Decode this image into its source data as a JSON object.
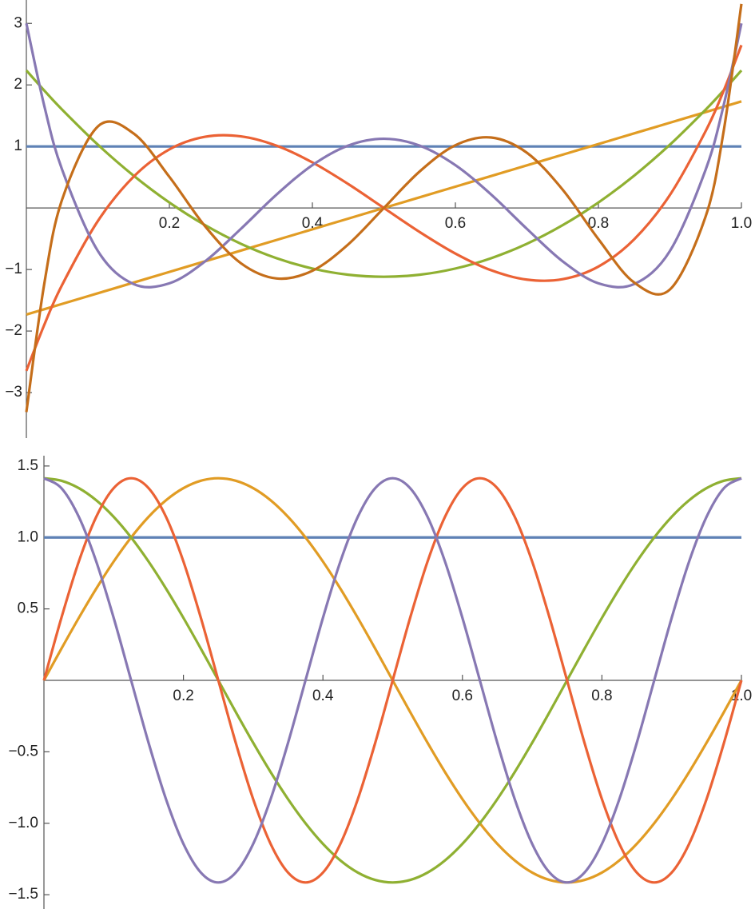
{
  "chart_data": [
    {
      "type": "line",
      "x": [
        0,
        0.025,
        0.05,
        0.1,
        0.15,
        0.2,
        0.25,
        0.3,
        0.35,
        0.4,
        0.45,
        0.5,
        0.55,
        0.6,
        0.65,
        0.7,
        0.75,
        0.8,
        0.85,
        0.9,
        0.95,
        0.975,
        1
      ],
      "xlim": [
        0,
        1
      ],
      "xticks": [
        0.2,
        0.4,
        0.6,
        0.8,
        {
          "value": 1,
          "label": "1.0"
        }
      ],
      "ylim": [
        -3.74,
        3.38
      ],
      "yticks": [
        {
          "value": -3,
          "label": "−3"
        },
        {
          "value": -2,
          "label": "−2"
        },
        {
          "value": -1,
          "label": "−1"
        },
        1,
        2,
        3
      ],
      "grid": false,
      "series": [
        {
          "color": "#5e81b5",
          "values": [
            1,
            1,
            1,
            1,
            1,
            1,
            1,
            1,
            1,
            1,
            1,
            1,
            1,
            1,
            1,
            1,
            1,
            1,
            1,
            1,
            1,
            1,
            1
          ]
        },
        {
          "color": "#e19c24",
          "values": [
            -1.7321,
            -1.6454,
            -1.5588,
            -1.3856,
            -1.2124,
            -1.0392,
            -0.866,
            -0.6928,
            -0.5196,
            -0.3464,
            -0.1732,
            0,
            0.1732,
            0.3464,
            0.5196,
            0.6928,
            0.866,
            1.0392,
            1.2124,
            1.3856,
            1.5588,
            1.6454,
            1.7321
          ]
        },
        {
          "color": "#8fb032",
          "values": [
            2.2361,
            1.9091,
            1.5988,
            1.0286,
            0.5255,
            0.0894,
            -0.2795,
            -0.5814,
            -0.8162,
            -0.9839,
            -1.0845,
            -1.118,
            -1.0845,
            -0.9839,
            -0.8162,
            -0.5814,
            -0.2795,
            0.0894,
            0.5255,
            1.0286,
            1.5988,
            1.9091,
            2.2361
          ]
        },
        {
          "color": "#eb6235",
          "values": [
            -2.6458,
            -1.9008,
            -1.2501,
            -0.2117,
            0.5093,
            0.9525,
            1.1575,
            1.1641,
            1.012,
            0.7408,
            0.3902,
            0,
            -0.3902,
            -0.7408,
            -1.012,
            -1.1641,
            -1.1575,
            -0.9525,
            -0.5093,
            0.2117,
            1.2501,
            1.9008,
            2.6458
          ]
        },
        {
          "color": "#8778b3",
          "values": [
            3,
            1.6623,
            0.6238,
            -0.699,
            -1.2362,
            -1.224,
            -0.8672,
            -0.339,
            0.2188,
            0.696,
            1.0138,
            1.125,
            1.0138,
            0.696,
            0.2188,
            -0.339,
            -0.8672,
            -1.224,
            -1.2362,
            -0.699,
            0.6238,
            1.6623,
            3
          ]
        },
        {
          "color": "#c56e1a",
          "values": [
            -3.3166,
            -1.2363,
            0.1364,
            1.3251,
            1.2112,
            0.5063,
            -0.298,
            -0.8976,
            -1.1455,
            -1.0199,
            -0.5931,
            0,
            0.5931,
            1.0199,
            1.1455,
            0.8976,
            0.298,
            -0.5063,
            -1.2112,
            -1.3251,
            -0.1364,
            1.2363,
            3.3166
          ]
        }
      ]
    },
    {
      "type": "line",
      "x": [
        0,
        0.025,
        0.05,
        0.075,
        0.1,
        0.125,
        0.15,
        0.175,
        0.2,
        0.225,
        0.25,
        0.275,
        0.3,
        0.325,
        0.35,
        0.375,
        0.4,
        0.425,
        0.45,
        0.475,
        0.5,
        0.525,
        0.55,
        0.575,
        0.6,
        0.625,
        0.65,
        0.675,
        0.7,
        0.725,
        0.75,
        0.775,
        0.8,
        0.825,
        0.85,
        0.875,
        0.9,
        0.925,
        0.95,
        0.975,
        1
      ],
      "xlim": [
        0,
        1
      ],
      "xticks": [
        0.2,
        0.4,
        0.6,
        0.8,
        {
          "value": 1,
          "label": "1.0"
        }
      ],
      "ylim": [
        -1.6,
        1.572
      ],
      "yticks": [
        {
          "value": -1.5,
          "label": "−1.5"
        },
        {
          "value": -1,
          "label": "−1.0"
        },
        {
          "value": -0.5,
          "label": "−0.5"
        },
        0.5,
        {
          "value": 1,
          "label": "1.0"
        },
        1.5
      ],
      "grid": false,
      "series": [
        {
          "color": "#5e81b5",
          "values": [
            1,
            1,
            1,
            1,
            1,
            1,
            1,
            1,
            1,
            1,
            1,
            1,
            1,
            1,
            1,
            1,
            1,
            1,
            1,
            1,
            1,
            1,
            1,
            1,
            1,
            1,
            1,
            1,
            1,
            1,
            1,
            1,
            1,
            1,
            1,
            1,
            1,
            1,
            1,
            1,
            1
          ]
        },
        {
          "color": "#e19c24",
          "values": [
            0,
            0.2212,
            0.437,
            0.642,
            0.8313,
            1,
            1.1441,
            1.2601,
            1.345,
            1.3968,
            1.4142,
            1.3968,
            1.345,
            1.2601,
            1.1441,
            1,
            0.8313,
            0.642,
            0.437,
            0.2212,
            0,
            -0.2212,
            -0.437,
            -0.642,
            -0.8313,
            -1,
            -1.1441,
            -1.2601,
            -1.345,
            -1.3968,
            -1.4142,
            -1.3968,
            -1.345,
            -1.2601,
            -1.1441,
            -1,
            -0.8313,
            -0.642,
            -0.437,
            -0.2212,
            0
          ]
        },
        {
          "color": "#8fb032",
          "values": [
            1.4142,
            1.3968,
            1.345,
            1.2601,
            1.1441,
            1,
            0.8313,
            0.642,
            0.437,
            0.2212,
            0,
            -0.2212,
            -0.437,
            -0.642,
            -0.8313,
            -1,
            -1.1441,
            -1.2601,
            -1.345,
            -1.3968,
            -1.4142,
            -1.3968,
            -1.345,
            -1.2601,
            -1.1441,
            -1,
            -0.8313,
            -0.642,
            -0.437,
            -0.2212,
            0,
            0.2212,
            0.437,
            0.642,
            0.8313,
            1,
            1.1441,
            1.2601,
            1.345,
            1.3968,
            1.4142
          ]
        },
        {
          "color": "#eb6235",
          "values": [
            0,
            0.437,
            0.8313,
            1.1441,
            1.345,
            1.4142,
            1.345,
            1.1441,
            0.8313,
            0.437,
            0,
            -0.437,
            -0.8313,
            -1.1441,
            -1.345,
            -1.4142,
            -1.345,
            -1.1441,
            -0.8313,
            -0.437,
            0,
            0.437,
            0.8313,
            1.1441,
            1.345,
            1.4142,
            1.345,
            1.1441,
            0.8313,
            0.437,
            0,
            -0.437,
            -0.8313,
            -1.1441,
            -1.345,
            -1.4142,
            -1.345,
            -1.1441,
            -0.8313,
            -0.437,
            0
          ]
        },
        {
          "color": "#8778b3",
          "values": [
            1.4142,
            1.345,
            1.1441,
            0.8313,
            0.437,
            0,
            -0.437,
            -0.8313,
            -1.1441,
            -1.345,
            -1.4142,
            -1.345,
            -1.1441,
            -0.8313,
            -0.437,
            0,
            0.437,
            0.8313,
            1.1441,
            1.345,
            1.4142,
            1.345,
            1.1441,
            0.8313,
            0.437,
            0,
            -0.437,
            -0.8313,
            -1.1441,
            -1.345,
            -1.4142,
            -1.345,
            -1.1441,
            -0.8313,
            -0.437,
            0,
            0.437,
            0.8313,
            1.1441,
            1.345,
            1.4142
          ]
        }
      ]
    }
  ]
}
